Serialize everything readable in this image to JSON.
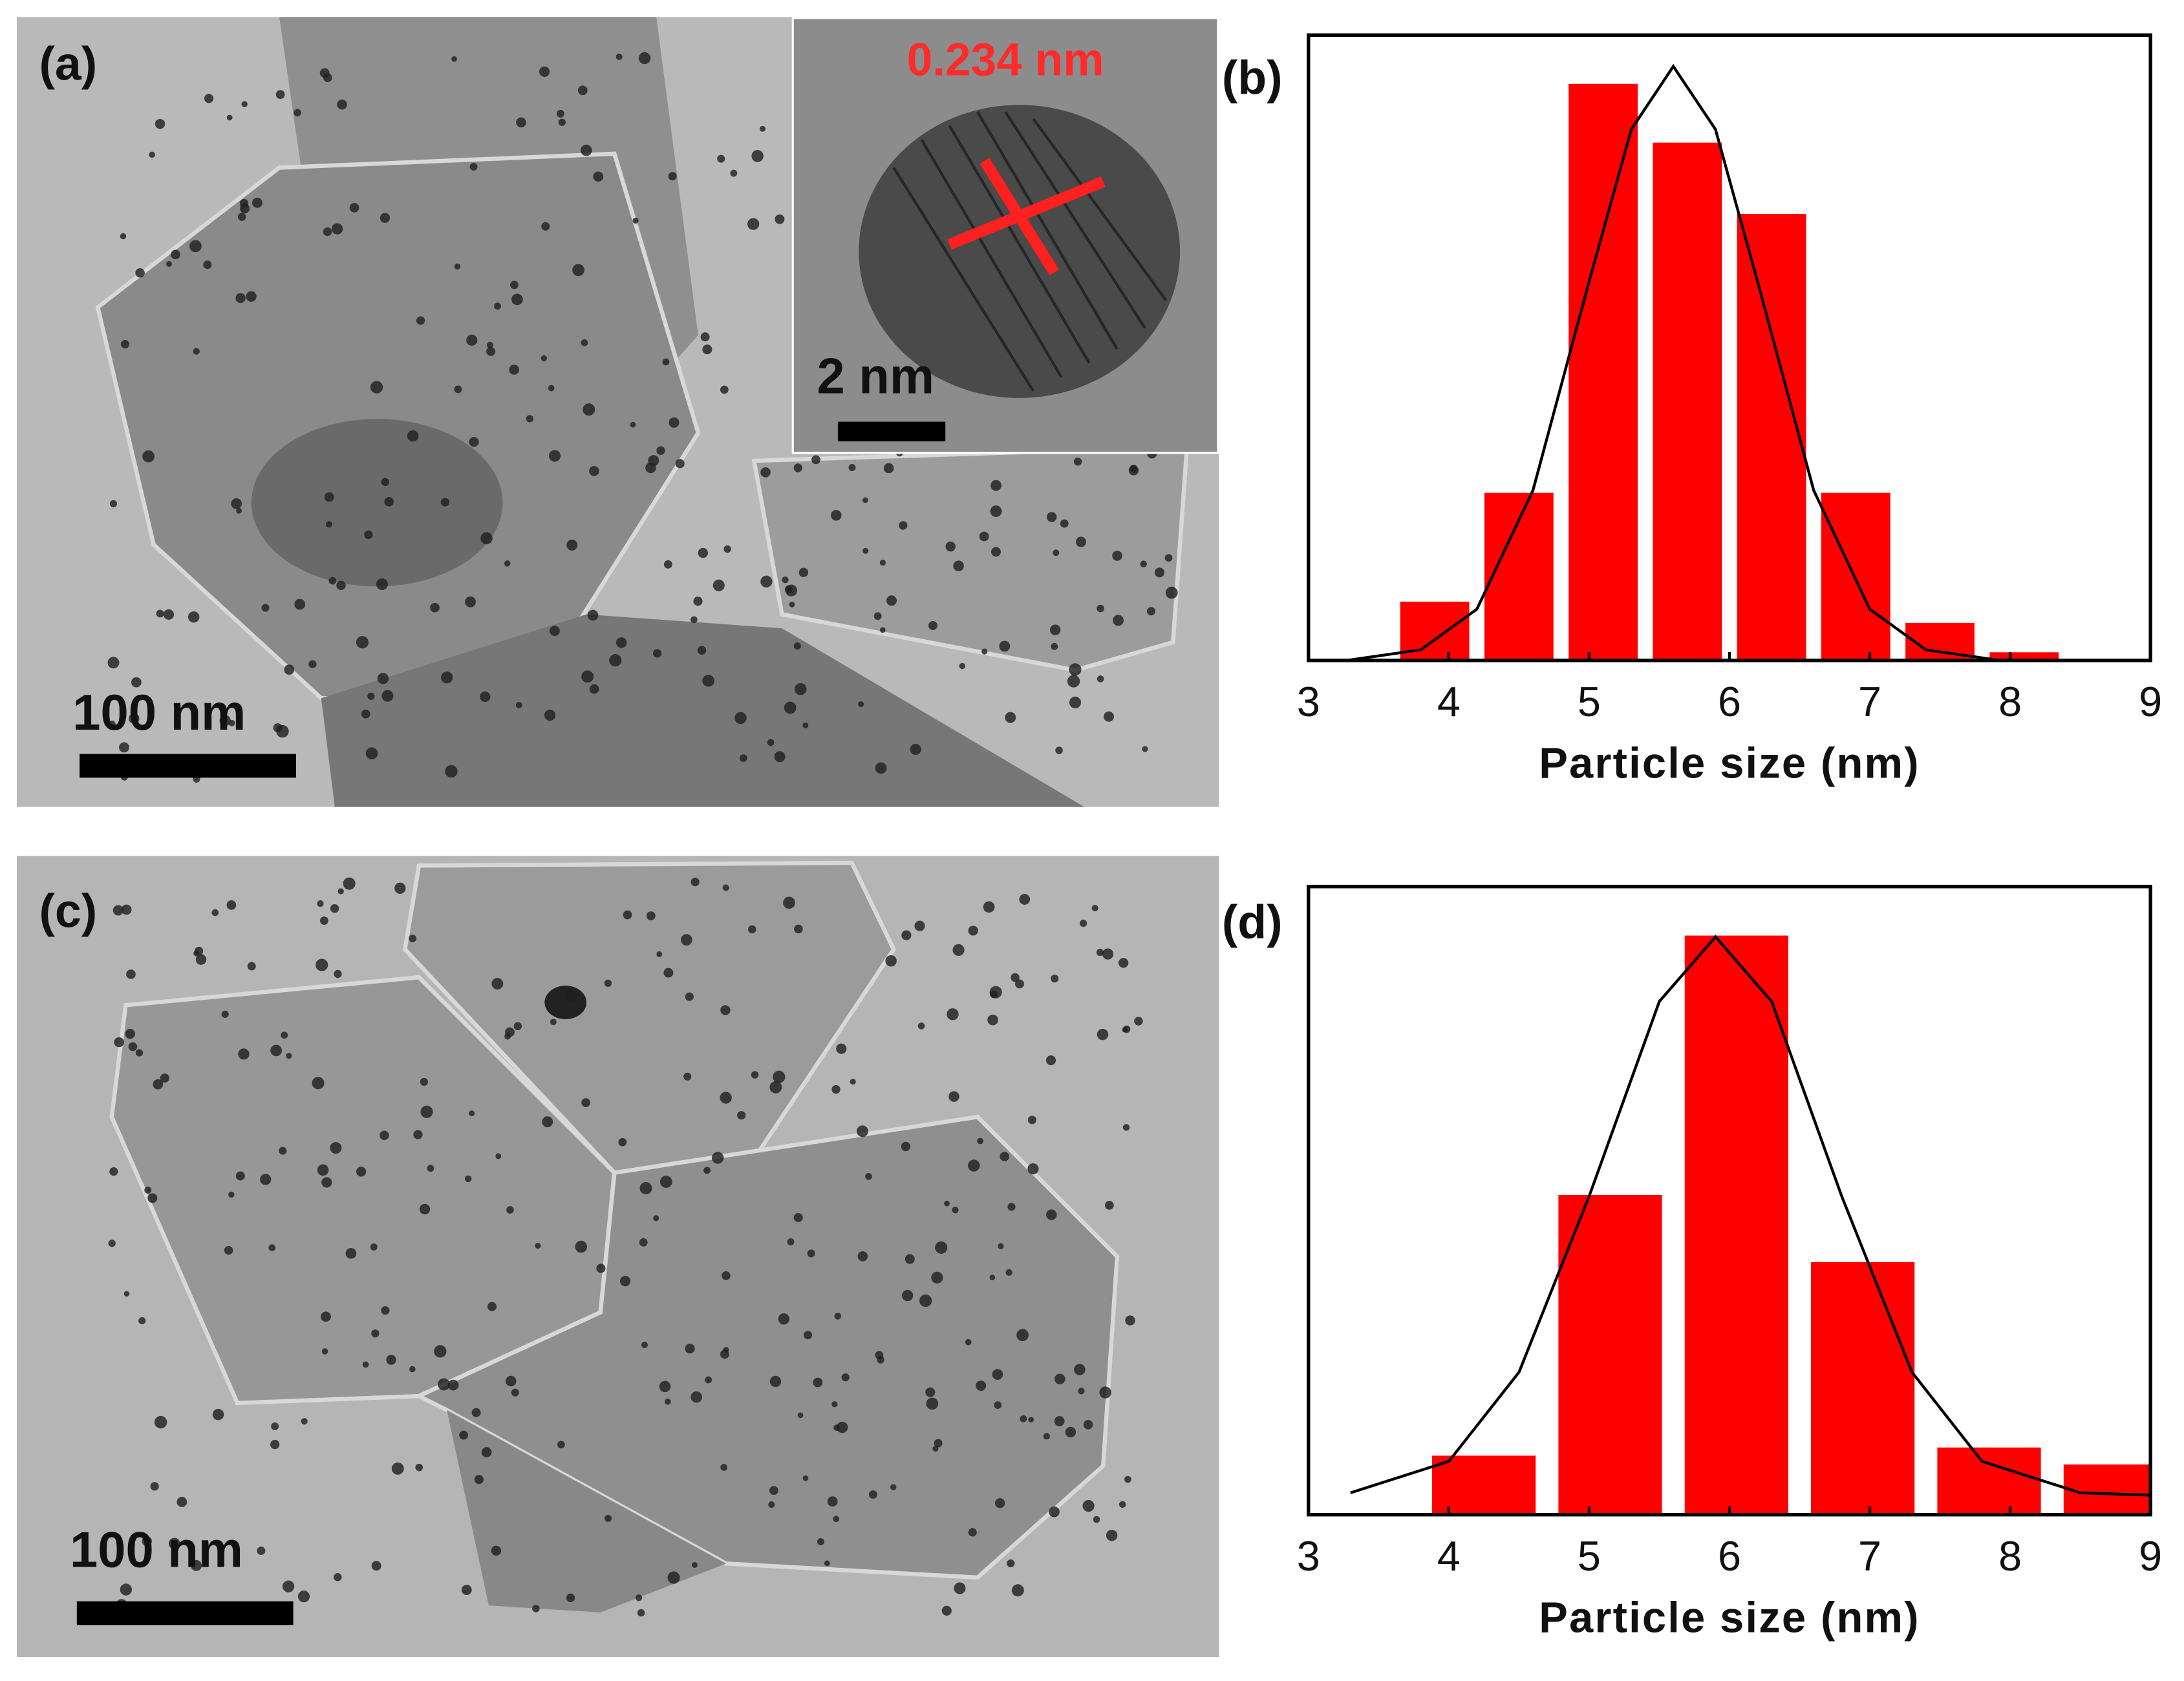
{
  "panels": [
    {
      "label": "(a)",
      "scale_bar": "100 nm",
      "inset": {
        "scale_bar": "2 nm",
        "annotation": "0.234 nm"
      }
    },
    {
      "label": "(c)",
      "scale_bar": "100 nm"
    }
  ],
  "chart_data": [
    {
      "type": "histogram",
      "label": "(b)",
      "x_label": "Particle size (nm)",
      "bins": [
        3.6,
        4.2,
        4.8,
        5.4,
        6.0,
        6.6,
        7.2,
        7.8,
        8.4
      ],
      "values": [
        9.4,
        26.8,
        92.2,
        82.8,
        71.4,
        26.8,
        6.0,
        1.3
      ],
      "color": "#ff0000",
      "fit": {
        "x": [
          3.3,
          3.8,
          4.2,
          4.6,
          5.0,
          5.3,
          5.6,
          5.9,
          6.2,
          6.6,
          7.0,
          7.4,
          7.9,
          8.5
        ],
        "y": [
          0.1,
          1.7,
          8.2,
          27.2,
          60.6,
          84.9,
          95,
          84.9,
          60.6,
          27.2,
          8.2,
          1.7,
          0.1,
          0
        ],
        "color": "#000000"
      },
      "xlim": [
        3,
        9
      ],
      "ylim": [
        0,
        100
      ],
      "xticks": [
        3,
        4,
        5,
        6,
        7,
        8,
        9
      ]
    },
    {
      "type": "histogram",
      "label": "(d)",
      "x_label": "Particle size (nm)",
      "bins": [
        3.8,
        4.7,
        5.6,
        6.5,
        7.4,
        8.3,
        9.2
      ],
      "values": [
        9.4,
        50.9,
        92.2,
        40.2,
        10.7,
        8.0
      ],
      "color": "#ff0000",
      "fit": {
        "x": [
          3.3,
          4.0,
          4.5,
          5.0,
          5.5,
          5.9,
          6.3,
          6.8,
          7.3,
          7.8,
          8.5,
          9.0
        ],
        "y": [
          3.5,
          8.5,
          22.7,
          50.7,
          81.7,
          92,
          81.7,
          50.7,
          22.7,
          8.5,
          3.5,
          3.1
        ],
        "color": "#000000"
      },
      "xlim": [
        3,
        9
      ],
      "ylim": [
        0,
        100
      ],
      "xticks": [
        3,
        4,
        5,
        6,
        7,
        8,
        9
      ]
    }
  ]
}
